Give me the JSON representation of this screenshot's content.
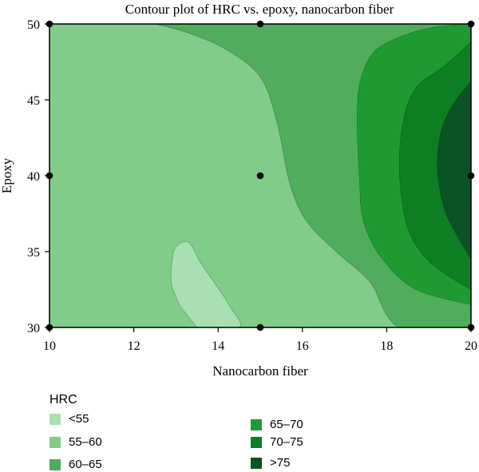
{
  "chart_data": {
    "type": "contour",
    "title": "Contour plot of HRC vs. epoxy, nanocarbon fiber",
    "xlabel": "Nanocarbon fiber",
    "ylabel": "Epoxy",
    "xlim": [
      10,
      20
    ],
    "ylim": [
      30,
      50
    ],
    "xticks": [
      10,
      12,
      14,
      16,
      18,
      20
    ],
    "yticks": [
      30,
      35,
      40,
      45,
      50
    ],
    "grid": false,
    "legend_title": "HRC",
    "legend_position": "bottom",
    "levels": [
      {
        "label": "<55",
        "color": "#a8e0b4"
      },
      {
        "label": "55–60",
        "color": "#82cc8a"
      },
      {
        "label": "60–65",
        "color": "#4fad5b"
      },
      {
        "label": "65–70",
        "color": "#1f9a33"
      },
      {
        "label": "70–75",
        "color": "#0d7f22"
      },
      {
        "label": ">75",
        "color": "#0b5326"
      }
    ],
    "regions": [
      {
        "level": "55–60",
        "boundary": [
          [
            10,
            30
          ],
          [
            20,
            30
          ],
          [
            20,
            50
          ],
          [
            10,
            50
          ]
        ]
      },
      {
        "level": "60–65",
        "boundary": [
          [
            12.5,
            50
          ],
          [
            13.3,
            49.4
          ],
          [
            14.2,
            48.3
          ],
          [
            15.0,
            46.5
          ],
          [
            15.4,
            43.5
          ],
          [
            15.7,
            39.5
          ],
          [
            16.1,
            37
          ],
          [
            16.8,
            35
          ],
          [
            17.6,
            33
          ],
          [
            18.3,
            30
          ],
          [
            20,
            30
          ],
          [
            20,
            50
          ]
        ]
      },
      {
        "level": "65–70",
        "boundary": [
          [
            19.8,
            50
          ],
          [
            18.8,
            49.6
          ],
          [
            17.8,
            48.4
          ],
          [
            17.4,
            46.5
          ],
          [
            17.3,
            44
          ],
          [
            17.35,
            40
          ],
          [
            17.45,
            37
          ],
          [
            17.9,
            34.5
          ],
          [
            18.7,
            32.5
          ],
          [
            20,
            31.5
          ]
        ]
      },
      {
        "level": "70–75",
        "boundary": [
          [
            20,
            48.8
          ],
          [
            19.4,
            47.3
          ],
          [
            18.7,
            45.8
          ],
          [
            18.4,
            43.7
          ],
          [
            18.3,
            40.5
          ],
          [
            18.45,
            37
          ],
          [
            18.8,
            35
          ],
          [
            19.3,
            33.7
          ],
          [
            20,
            32.5
          ]
        ]
      },
      {
        "level": ">75",
        "boundary": [
          [
            20,
            46.2
          ],
          [
            19.6,
            44.8
          ],
          [
            19.3,
            43
          ],
          [
            19.2,
            40.5
          ],
          [
            19.35,
            38
          ],
          [
            19.6,
            36.4
          ],
          [
            20,
            34.5
          ]
        ]
      },
      {
        "level": "<55",
        "boundary": [
          [
            13.5,
            30
          ],
          [
            14.5,
            30
          ],
          [
            14.3,
            31.3
          ],
          [
            14.0,
            32.6
          ],
          [
            13.6,
            34.2
          ],
          [
            13.3,
            35.6
          ],
          [
            13.0,
            35.3
          ],
          [
            12.9,
            34.2
          ],
          [
            12.9,
            32.8
          ],
          [
            13.1,
            31.4
          ]
        ]
      }
    ],
    "design_points": [
      {
        "x": 10,
        "y": 50
      },
      {
        "x": 15,
        "y": 50
      },
      {
        "x": 20,
        "y": 50
      },
      {
        "x": 10,
        "y": 40
      },
      {
        "x": 15,
        "y": 40
      },
      {
        "x": 20,
        "y": 40
      },
      {
        "x": 10,
        "y": 30
      },
      {
        "x": 15,
        "y": 30
      },
      {
        "x": 20,
        "y": 30
      }
    ]
  }
}
